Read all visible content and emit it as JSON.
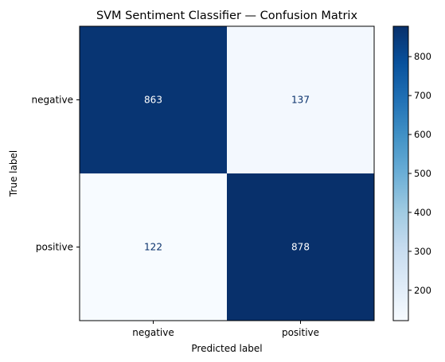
{
  "chart_data": {
    "type": "heatmap",
    "title": "SVM Sentiment Classifier — Confusion Matrix",
    "xlabel": "Predicted label",
    "ylabel": "True label",
    "x_categories": [
      "negative",
      "positive"
    ],
    "y_categories": [
      "negative",
      "positive"
    ],
    "values": [
      [
        863,
        137
      ],
      [
        122,
        878
      ]
    ],
    "colormap": "Blues",
    "colorbar": {
      "min": 122,
      "max": 878,
      "ticks": [
        200,
        300,
        400,
        500,
        600,
        700,
        800
      ]
    },
    "text_colors": {
      "light": "#ffffff",
      "dark": "#08306b"
    }
  }
}
